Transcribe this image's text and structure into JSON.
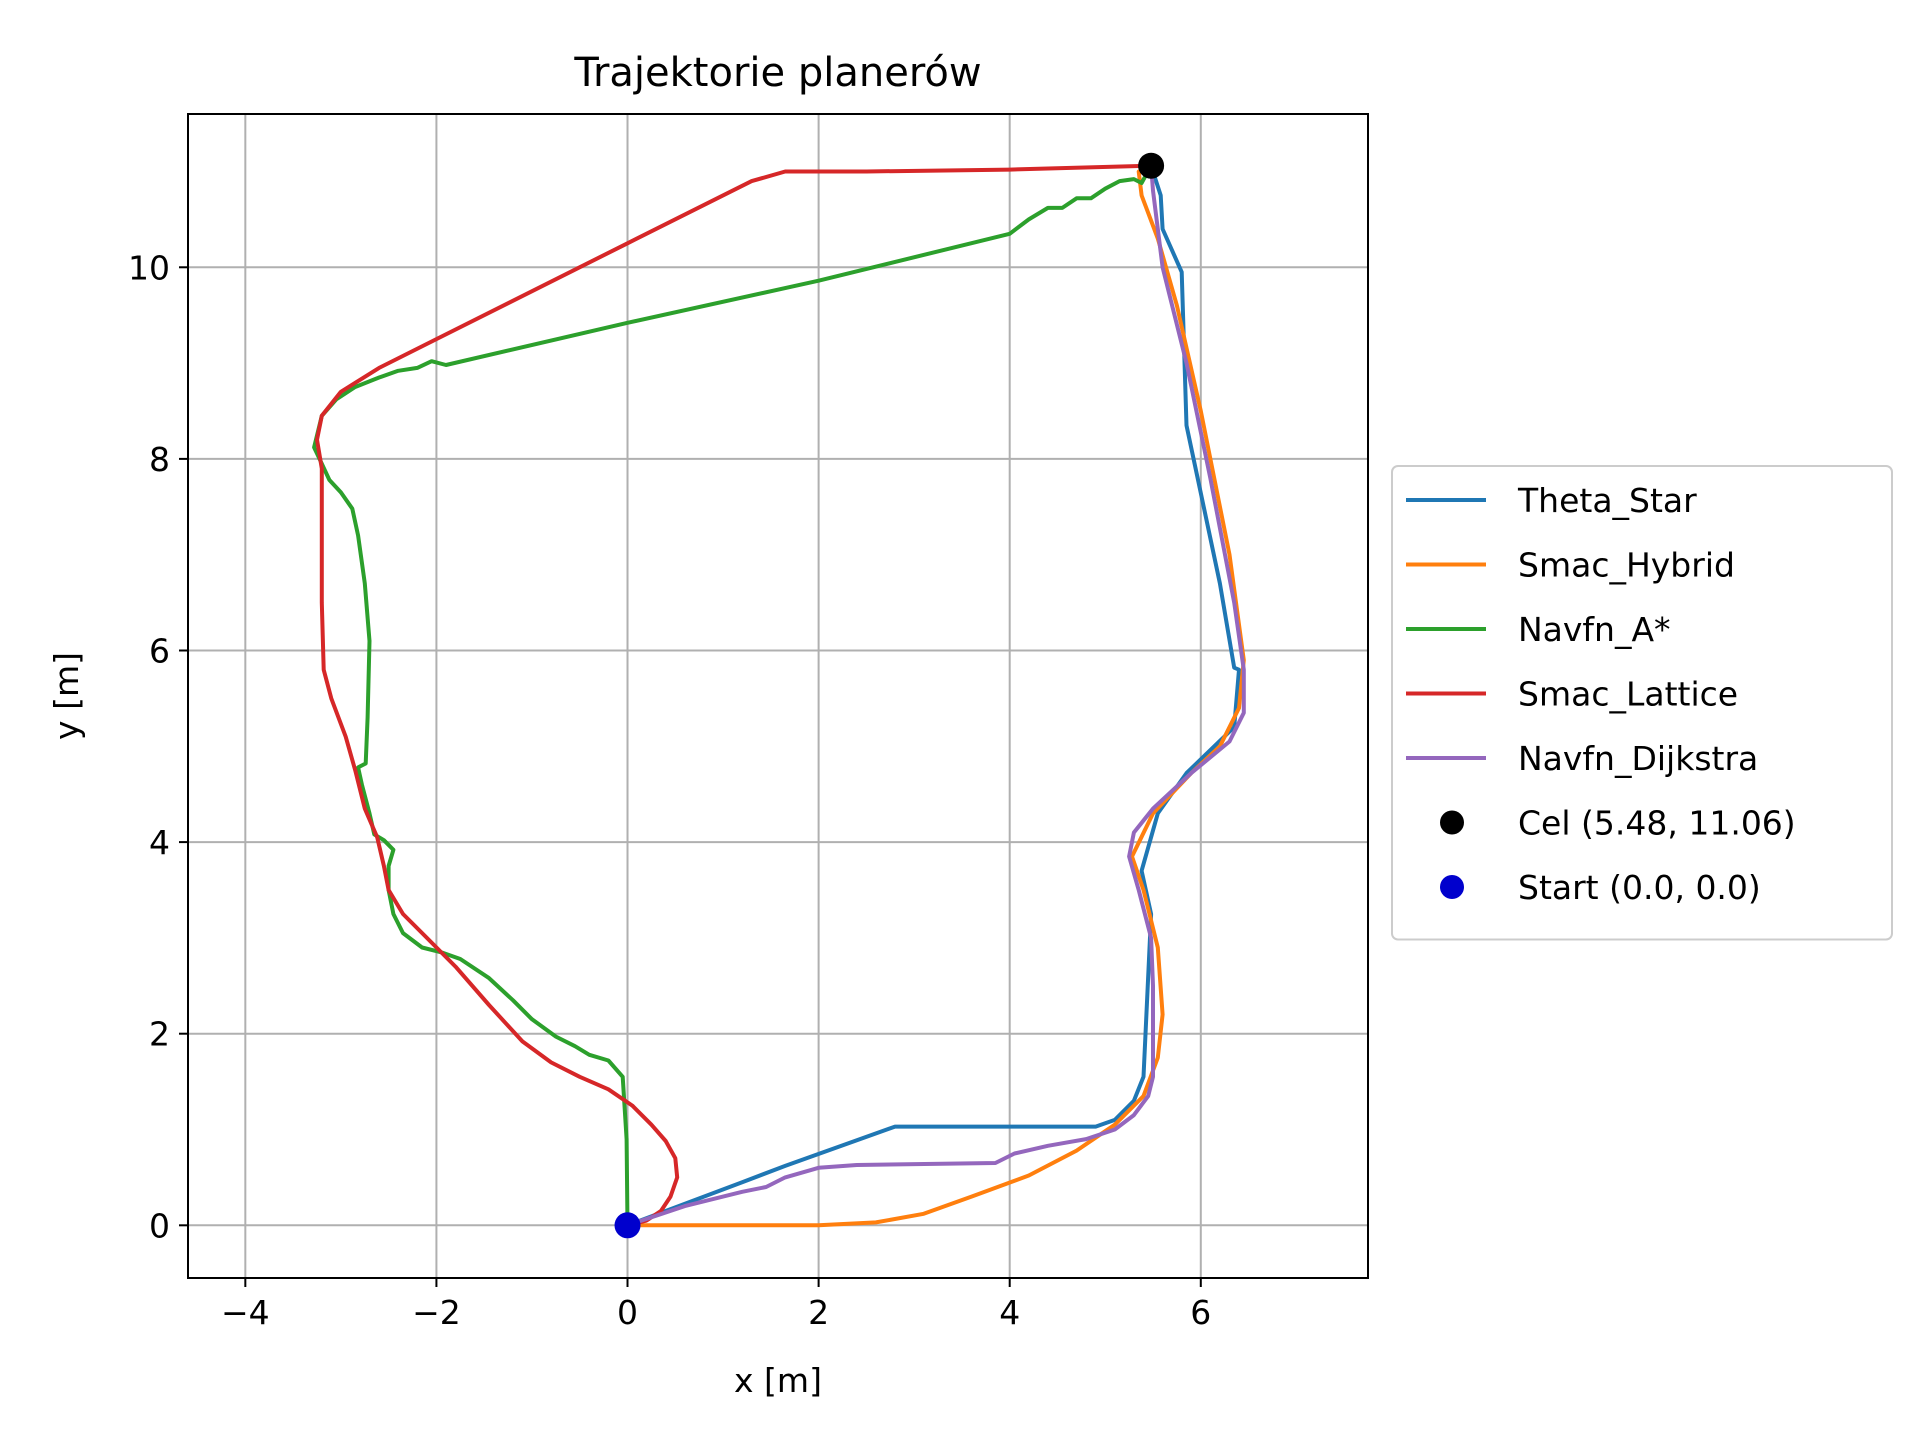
{
  "chart_data": {
    "type": "line",
    "title": "Trajektorie planerów",
    "xlabel": "x [m]",
    "ylabel": "y [m]",
    "xlim": [
      -4.6,
      7.75
    ],
    "ylim": [
      -0.55,
      11.6
    ],
    "xticks": [
      -4,
      -2,
      0,
      2,
      4,
      6
    ],
    "xtick_labels": [
      "−4",
      "−2",
      "0",
      "2",
      "4",
      "6"
    ],
    "yticks": [
      0,
      2,
      4,
      6,
      8,
      10
    ],
    "ytick_labels": [
      "0",
      "2",
      "4",
      "6",
      "8",
      "10"
    ],
    "grid": true,
    "legend_position": "center-left outside right",
    "series": [
      {
        "name": "Theta_Star",
        "color": "#1f77b4",
        "points": [
          [
            0,
            0
          ],
          [
            1.2,
            0.45
          ],
          [
            1.65,
            0.62
          ],
          [
            2.8,
            1.03
          ],
          [
            4.9,
            1.03
          ],
          [
            5.1,
            1.1
          ],
          [
            5.3,
            1.3
          ],
          [
            5.4,
            1.55
          ],
          [
            5.48,
            3.25
          ],
          [
            5.38,
            3.7
          ],
          [
            5.55,
            4.3
          ],
          [
            5.85,
            4.72
          ],
          [
            6.35,
            5.2
          ],
          [
            6.4,
            5.8
          ],
          [
            6.35,
            5.82
          ],
          [
            6.2,
            6.7
          ],
          [
            5.85,
            8.35
          ],
          [
            5.8,
            9.95
          ],
          [
            5.6,
            10.4
          ],
          [
            5.58,
            10.75
          ],
          [
            5.48,
            11.06
          ]
        ]
      },
      {
        "name": "Smac_Hybrid",
        "color": "#ff7f0e",
        "points": [
          [
            0,
            0
          ],
          [
            2.0,
            0.0
          ],
          [
            2.6,
            0.03
          ],
          [
            3.1,
            0.12
          ],
          [
            3.6,
            0.3
          ],
          [
            4.2,
            0.52
          ],
          [
            4.7,
            0.78
          ],
          [
            5.1,
            1.05
          ],
          [
            5.4,
            1.35
          ],
          [
            5.55,
            1.75
          ],
          [
            5.6,
            2.2
          ],
          [
            5.55,
            2.9
          ],
          [
            5.4,
            3.5
          ],
          [
            5.28,
            3.85
          ],
          [
            5.5,
            4.3
          ],
          [
            5.9,
            4.72
          ],
          [
            6.2,
            5.0
          ],
          [
            6.4,
            5.4
          ],
          [
            6.45,
            5.9
          ],
          [
            6.3,
            7.0
          ],
          [
            6.0,
            8.5
          ],
          [
            5.75,
            9.6
          ],
          [
            5.55,
            10.3
          ],
          [
            5.38,
            10.75
          ],
          [
            5.35,
            11.0
          ],
          [
            5.48,
            11.06
          ]
        ]
      },
      {
        "name": "Navfn_A*",
        "color": "#2ca02c",
        "points": [
          [
            0,
            0
          ],
          [
            -0.01,
            0.9
          ],
          [
            -0.05,
            1.55
          ],
          [
            -0.2,
            1.72
          ],
          [
            -0.4,
            1.78
          ],
          [
            -0.55,
            1.87
          ],
          [
            -0.75,
            1.97
          ],
          [
            -1.0,
            2.15
          ],
          [
            -1.2,
            2.35
          ],
          [
            -1.45,
            2.58
          ],
          [
            -1.75,
            2.78
          ],
          [
            -1.95,
            2.85
          ],
          [
            -2.15,
            2.9
          ],
          [
            -2.35,
            3.05
          ],
          [
            -2.45,
            3.25
          ],
          [
            -2.5,
            3.5
          ],
          [
            -2.5,
            3.75
          ],
          [
            -2.45,
            3.92
          ],
          [
            -2.55,
            4.02
          ],
          [
            -2.65,
            4.08
          ],
          [
            -2.7,
            4.3
          ],
          [
            -2.78,
            4.6
          ],
          [
            -2.82,
            4.78
          ],
          [
            -2.74,
            4.82
          ],
          [
            -2.72,
            5.3
          ],
          [
            -2.7,
            6.1
          ],
          [
            -2.75,
            6.7
          ],
          [
            -2.82,
            7.2
          ],
          [
            -2.88,
            7.48
          ],
          [
            -3.0,
            7.65
          ],
          [
            -3.12,
            7.78
          ],
          [
            -3.2,
            7.95
          ],
          [
            -3.28,
            8.12
          ],
          [
            -3.2,
            8.45
          ],
          [
            -3.05,
            8.62
          ],
          [
            -2.85,
            8.75
          ],
          [
            -2.6,
            8.85
          ],
          [
            -2.4,
            8.92
          ],
          [
            -2.2,
            8.95
          ],
          [
            -2.05,
            9.02
          ],
          [
            -1.9,
            8.98
          ],
          [
            0,
            9.42
          ],
          [
            2,
            9.86
          ],
          [
            4.0,
            10.35
          ],
          [
            4.2,
            10.5
          ],
          [
            4.4,
            10.62
          ],
          [
            4.55,
            10.62
          ],
          [
            4.7,
            10.72
          ],
          [
            4.85,
            10.72
          ],
          [
            5.0,
            10.82
          ],
          [
            5.15,
            10.9
          ],
          [
            5.3,
            10.92
          ],
          [
            5.38,
            10.88
          ],
          [
            5.48,
            11.06
          ]
        ]
      },
      {
        "name": "Smac_Lattice",
        "color": "#d62728",
        "points": [
          [
            0,
            0
          ],
          [
            0.2,
            0.05
          ],
          [
            0.35,
            0.15
          ],
          [
            0.45,
            0.3
          ],
          [
            0.52,
            0.5
          ],
          [
            0.5,
            0.7
          ],
          [
            0.4,
            0.88
          ],
          [
            0.25,
            1.05
          ],
          [
            0.05,
            1.25
          ],
          [
            -0.2,
            1.42
          ],
          [
            -0.5,
            1.55
          ],
          [
            -0.8,
            1.7
          ],
          [
            -1.1,
            1.92
          ],
          [
            -1.45,
            2.3
          ],
          [
            -1.8,
            2.7
          ],
          [
            -2.1,
            3.0
          ],
          [
            -2.35,
            3.25
          ],
          [
            -2.5,
            3.5
          ],
          [
            -2.55,
            3.75
          ],
          [
            -2.62,
            4.05
          ],
          [
            -2.75,
            4.35
          ],
          [
            -2.85,
            4.75
          ],
          [
            -2.95,
            5.1
          ],
          [
            -3.1,
            5.5
          ],
          [
            -3.18,
            5.8
          ],
          [
            -3.2,
            6.5
          ],
          [
            -3.2,
            7.5
          ],
          [
            -3.2,
            7.9
          ],
          [
            -3.25,
            8.2
          ],
          [
            -3.2,
            8.45
          ],
          [
            -3.0,
            8.7
          ],
          [
            -2.6,
            8.95
          ],
          [
            -2.0,
            9.25
          ],
          [
            0,
            10.25
          ],
          [
            1.3,
            10.9
          ],
          [
            1.65,
            11.0
          ],
          [
            2.5,
            11.0
          ],
          [
            4,
            11.02
          ],
          [
            5.48,
            11.06
          ]
        ]
      },
      {
        "name": "Navfn_Dijkstra",
        "color": "#9467bd",
        "points": [
          [
            0,
            0
          ],
          [
            0.6,
            0.2
          ],
          [
            1.2,
            0.35
          ],
          [
            1.45,
            0.4
          ],
          [
            1.65,
            0.5
          ],
          [
            2.0,
            0.6
          ],
          [
            2.4,
            0.63
          ],
          [
            3.85,
            0.65
          ],
          [
            4.05,
            0.75
          ],
          [
            4.4,
            0.83
          ],
          [
            4.8,
            0.9
          ],
          [
            5.1,
            1.0
          ],
          [
            5.3,
            1.15
          ],
          [
            5.45,
            1.35
          ],
          [
            5.5,
            1.55
          ],
          [
            5.5,
            2.5
          ],
          [
            5.48,
            3.0
          ],
          [
            5.35,
            3.5
          ],
          [
            5.25,
            3.85
          ],
          [
            5.3,
            4.1
          ],
          [
            5.5,
            4.35
          ],
          [
            5.9,
            4.72
          ],
          [
            6.3,
            5.05
          ],
          [
            6.45,
            5.35
          ],
          [
            6.45,
            5.8
          ],
          [
            6.35,
            6.5
          ],
          [
            6.1,
            7.8
          ],
          [
            5.85,
            9.0
          ],
          [
            5.6,
            10.0
          ],
          [
            5.55,
            10.4
          ],
          [
            5.5,
            10.8
          ],
          [
            5.48,
            11.06
          ]
        ]
      },
      {
        "name": "Cel (5.48, 11.06)",
        "color": "#000000",
        "marker": "circle",
        "points": [
          [
            5.48,
            11.06
          ]
        ]
      },
      {
        "name": "Start (0.0, 0.0)",
        "color": "#0000cd",
        "marker": "circle",
        "points": [
          [
            0.0,
            0.0
          ]
        ]
      }
    ]
  }
}
